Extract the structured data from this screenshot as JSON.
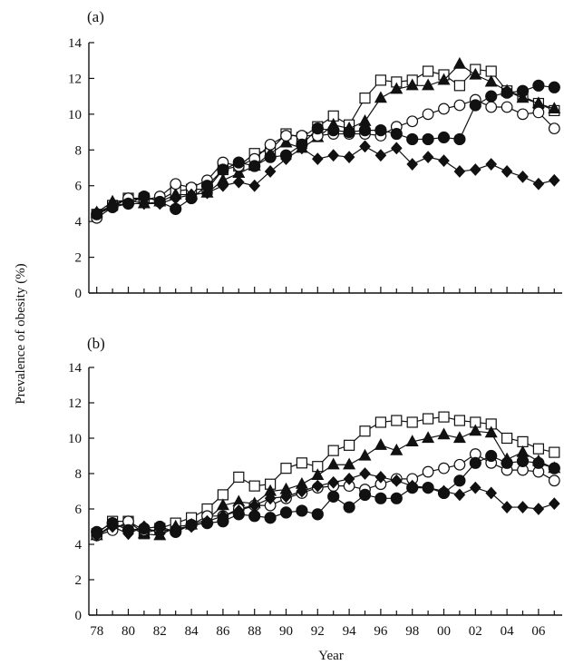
{
  "y_axis_label": "Prevalence of obesity (%)",
  "x_axis_label": "Year",
  "chart_data": [
    {
      "type": "line",
      "panel_label": "(a)",
      "ylim": [
        0,
        14
      ],
      "yticks": [
        "0",
        "2",
        "4",
        "6",
        "8",
        "10",
        "12",
        "14"
      ],
      "x_years": [
        1978,
        1979,
        1980,
        1981,
        1982,
        1983,
        1984,
        1985,
        1986,
        1987,
        1988,
        1989,
        1990,
        1991,
        1992,
        1993,
        1994,
        1995,
        1996,
        1997,
        1998,
        1999,
        2000,
        2001,
        2002,
        2003,
        2004,
        2005,
        2006,
        2007
      ],
      "xticks": [
        "78",
        "80",
        "82",
        "84",
        "86",
        "88",
        "90",
        "92",
        "94",
        "96",
        "98",
        "00",
        "02",
        "04",
        "06"
      ],
      "series": [
        {
          "marker": "square-open",
          "values": [
            4.4,
            4.9,
            5.3,
            5.3,
            5.2,
            5.7,
            5.8,
            5.8,
            6.9,
            7.1,
            7.8,
            8.0,
            8.9,
            8.7,
            9.3,
            9.9,
            9.4,
            10.9,
            11.9,
            11.8,
            11.9,
            12.4,
            12.2,
            11.6,
            12.5,
            12.4,
            11.3,
            11.0,
            10.6,
            10.2
          ]
        },
        {
          "marker": "triangle-filled",
          "values": [
            4.5,
            5.1,
            5.2,
            5.0,
            5.1,
            5.5,
            5.5,
            5.6,
            6.3,
            6.7,
            7.1,
            7.8,
            8.4,
            8.1,
            8.7,
            9.4,
            9.2,
            9.6,
            10.9,
            11.4,
            11.6,
            11.6,
            11.9,
            12.8,
            12.2,
            11.8,
            11.3,
            10.9,
            10.6,
            10.3
          ]
        },
        {
          "marker": "circle-open",
          "values": [
            4.2,
            4.8,
            5.3,
            5.2,
            5.4,
            6.1,
            5.9,
            6.3,
            7.3,
            7.1,
            7.5,
            8.3,
            8.8,
            8.8,
            8.8,
            8.9,
            8.9,
            8.9,
            8.8,
            9.3,
            9.6,
            10.0,
            10.3,
            10.5,
            10.8,
            10.4,
            10.4,
            10.0,
            10.1,
            9.2
          ]
        },
        {
          "marker": "circle-filled",
          "values": [
            4.4,
            4.8,
            5.0,
            5.4,
            5.1,
            4.7,
            5.3,
            6.0,
            6.9,
            7.3,
            7.1,
            7.6,
            7.7,
            8.3,
            9.2,
            9.1,
            9.0,
            9.1,
            9.1,
            8.9,
            8.6,
            8.6,
            8.7,
            8.6,
            10.5,
            11.0,
            11.2,
            11.3,
            11.6,
            11.5
          ]
        },
        {
          "marker": "diamond-filled",
          "values": [
            4.5,
            4.9,
            5.0,
            5.0,
            5.0,
            5.3,
            5.5,
            5.6,
            6.0,
            6.2,
            6.0,
            6.8,
            7.5,
            8.1,
            7.5,
            7.7,
            7.6,
            8.2,
            7.7,
            8.1,
            7.2,
            7.6,
            7.4,
            6.8,
            6.9,
            7.2,
            6.8,
            6.5,
            6.1,
            6.3
          ]
        }
      ]
    },
    {
      "type": "line",
      "panel_label": "(b)",
      "ylim": [
        0,
        14
      ],
      "yticks": [
        "0",
        "2",
        "4",
        "6",
        "8",
        "10",
        "12",
        "14"
      ],
      "x_years": [
        1978,
        1979,
        1980,
        1981,
        1982,
        1983,
        1984,
        1985,
        1986,
        1987,
        1988,
        1989,
        1990,
        1991,
        1992,
        1993,
        1994,
        1995,
        1996,
        1997,
        1998,
        1999,
        2000,
        2001,
        2002,
        2003,
        2004,
        2005,
        2006,
        2007
      ],
      "xticks": [
        "78",
        "80",
        "82",
        "84",
        "86",
        "88",
        "90",
        "92",
        "94",
        "96",
        "98",
        "00",
        "02",
        "04",
        "06"
      ],
      "series": [
        {
          "marker": "square-open",
          "values": [
            4.6,
            5.3,
            5.3,
            4.6,
            4.9,
            5.2,
            5.5,
            6.0,
            6.8,
            7.8,
            7.3,
            7.4,
            8.3,
            8.6,
            8.4,
            9.3,
            9.6,
            10.4,
            10.9,
            11.0,
            10.9,
            11.1,
            11.2,
            11.0,
            10.9,
            10.8,
            10.0,
            9.8,
            9.4,
            9.2
          ]
        },
        {
          "marker": "triangle-filled",
          "values": [
            4.5,
            5.1,
            5.0,
            4.6,
            4.5,
            5.0,
            5.1,
            5.4,
            6.2,
            6.4,
            6.3,
            7.0,
            7.1,
            7.4,
            7.9,
            8.5,
            8.5,
            9.0,
            9.6,
            9.3,
            9.8,
            10.0,
            10.2,
            10.0,
            10.4,
            10.3,
            8.8,
            9.2,
            8.7,
            8.3
          ]
        },
        {
          "marker": "circle-open",
          "values": [
            4.5,
            4.8,
            5.3,
            4.8,
            4.8,
            4.8,
            5.1,
            5.6,
            5.6,
            6.0,
            6.2,
            6.2,
            6.6,
            6.9,
            7.2,
            7.3,
            7.3,
            7.1,
            7.4,
            7.7,
            7.7,
            8.1,
            8.3,
            8.5,
            9.1,
            8.6,
            8.2,
            8.2,
            8.1,
            7.6
          ]
        },
        {
          "marker": "circle-filled",
          "values": [
            4.7,
            5.2,
            4.8,
            4.9,
            5.0,
            4.7,
            5.1,
            5.2,
            5.3,
            5.7,
            5.6,
            5.5,
            5.8,
            5.9,
            5.7,
            6.7,
            6.1,
            6.8,
            6.6,
            6.6,
            7.2,
            7.2,
            6.9,
            7.6,
            8.6,
            9.0,
            8.6,
            8.7,
            8.6,
            8.3
          ]
        },
        {
          "marker": "diamond-filled",
          "values": [
            4.5,
            5.0,
            4.6,
            5.0,
            4.6,
            4.9,
            5.0,
            5.3,
            5.6,
            5.9,
            6.2,
            6.6,
            6.7,
            7.0,
            7.3,
            7.5,
            7.7,
            8.0,
            7.8,
            7.6,
            7.3,
            7.2,
            7.0,
            6.8,
            7.2,
            6.9,
            6.1,
            6.1,
            6.0,
            6.3
          ]
        }
      ]
    }
  ]
}
